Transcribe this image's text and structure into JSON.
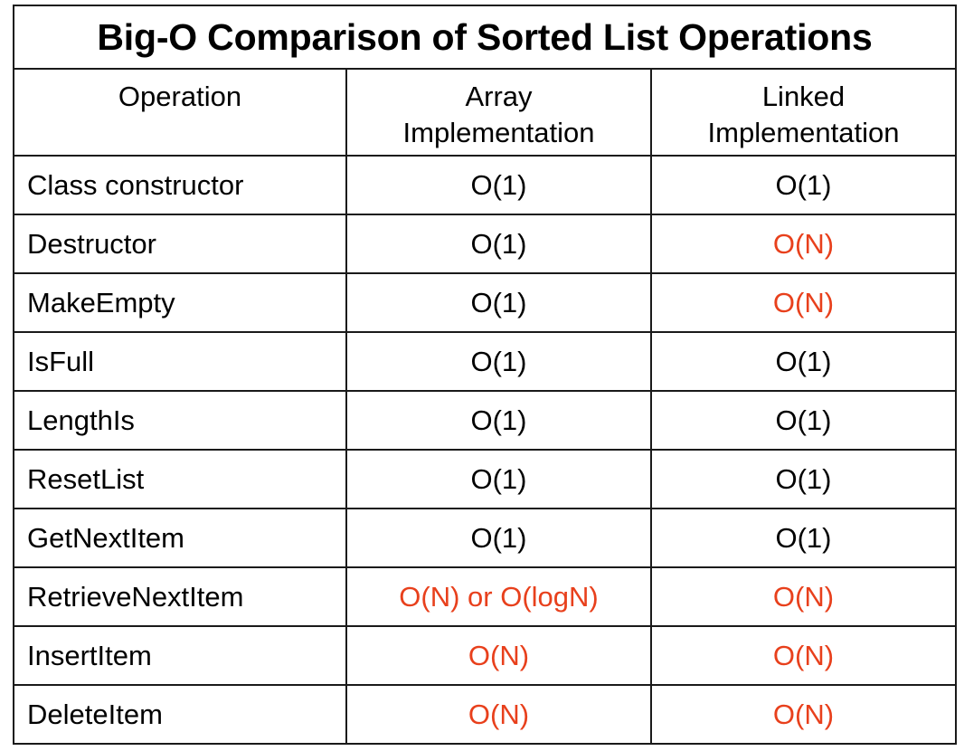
{
  "title": "Big-O Comparison of Sorted List Operations",
  "headers": {
    "operation": "Operation",
    "array_line1": "Array",
    "array_line2": "Implementation",
    "linked_line1": "Linked",
    "linked_line2": "Implementation"
  },
  "colors": {
    "highlight": "#e8401c",
    "normal": "#000000"
  },
  "rows": [
    {
      "operation": "Class constructor",
      "array": "O(1)",
      "linked": "O(1)",
      "array_highlight": false,
      "linked_highlight": false
    },
    {
      "operation": "Destructor",
      "array": "O(1)",
      "linked": "O(N)",
      "array_highlight": false,
      "linked_highlight": true
    },
    {
      "operation": "MakeEmpty",
      "array": "O(1)",
      "linked": "O(N)",
      "array_highlight": false,
      "linked_highlight": true
    },
    {
      "operation": "IsFull",
      "array": "O(1)",
      "linked": "O(1)",
      "array_highlight": false,
      "linked_highlight": false
    },
    {
      "operation": "LengthIs",
      "array": "O(1)",
      "linked": "O(1)",
      "array_highlight": false,
      "linked_highlight": false
    },
    {
      "operation": "ResetList",
      "array": "O(1)",
      "linked": "O(1)",
      "array_highlight": false,
      "linked_highlight": false
    },
    {
      "operation": "GetNextItem",
      "array": "O(1)",
      "linked": "O(1)",
      "array_highlight": false,
      "linked_highlight": false
    },
    {
      "operation": "RetrieveNextItem",
      "array": "O(N) or O(logN)",
      "linked": "O(N)",
      "array_highlight": true,
      "linked_highlight": true
    },
    {
      "operation": "InsertItem",
      "array": "O(N)",
      "linked": "O(N)",
      "array_highlight": true,
      "linked_highlight": true
    },
    {
      "operation": "DeleteItem",
      "array": "O(N)",
      "linked": "O(N)",
      "array_highlight": true,
      "linked_highlight": true
    }
  ]
}
